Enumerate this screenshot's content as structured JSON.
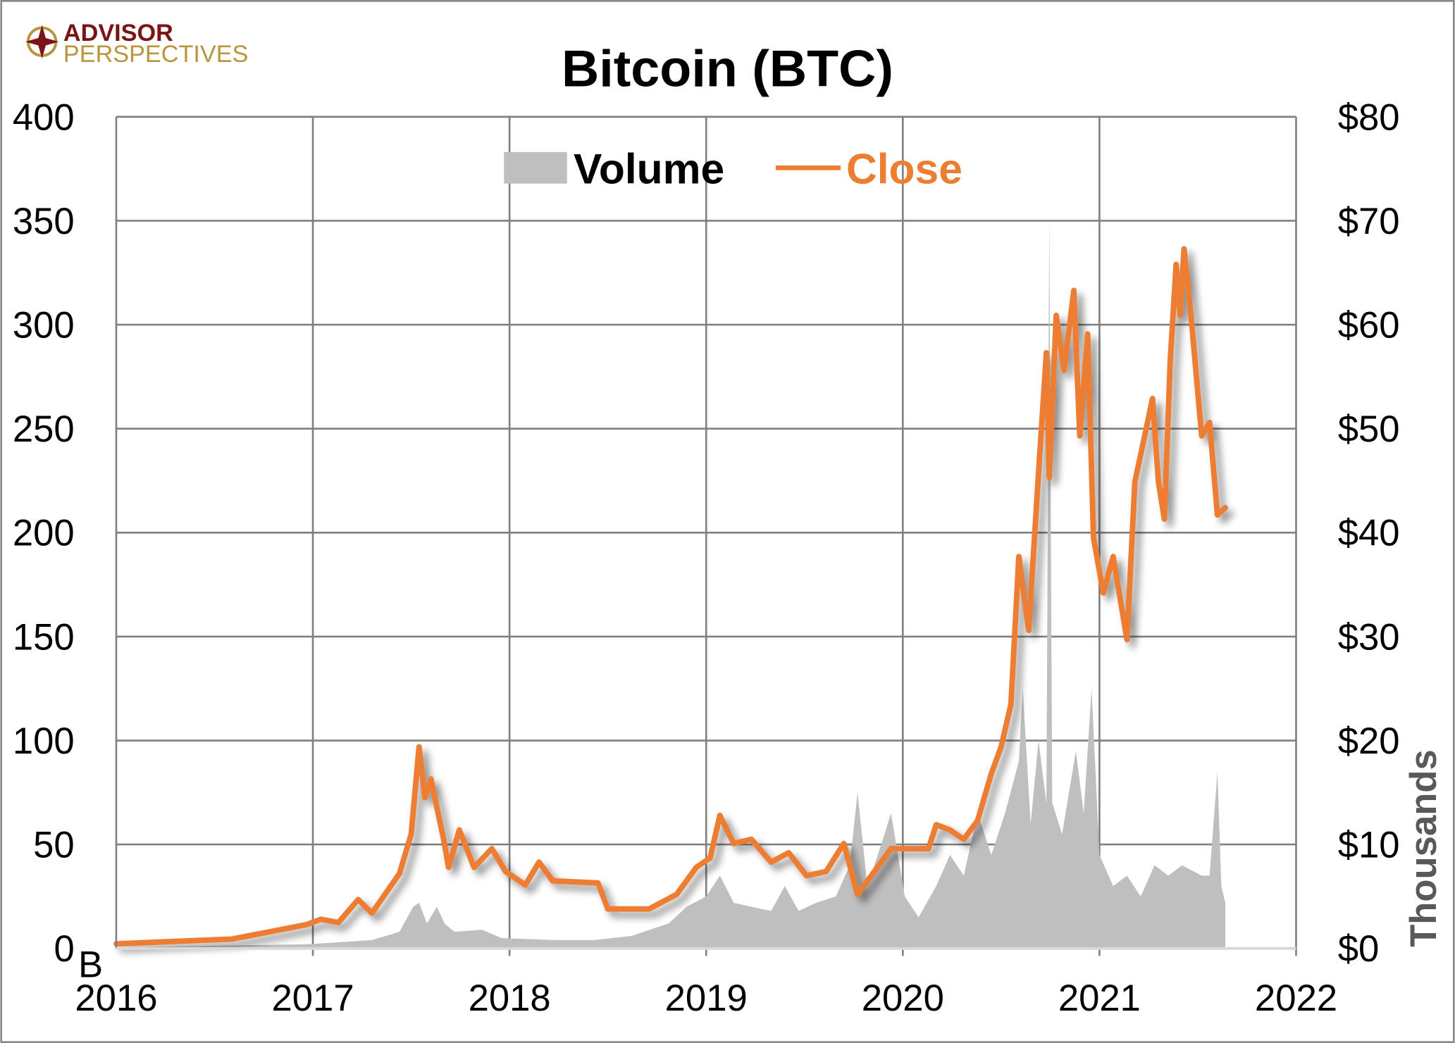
{
  "logo": {
    "line1": "ADVISOR",
    "line2": "PERSPECTIVES"
  },
  "chart_data": {
    "type": "line",
    "title": "Bitcoin (BTC)",
    "xlabel": "",
    "ylabel_left": "",
    "ylabel_right": "Thousands",
    "left_unit_suffix": "B",
    "x_ticks": [
      "2016",
      "2017",
      "2018",
      "2019",
      "2020",
      "2021",
      "2022"
    ],
    "xlim": [
      2016,
      2022
    ],
    "ylim_left": [
      0,
      400
    ],
    "ylim_right": [
      0,
      80
    ],
    "y_ticks_left": [
      "0",
      "50",
      "100",
      "150",
      "200",
      "250",
      "300",
      "350",
      "400"
    ],
    "y_ticks_right": [
      "$0",
      "$10",
      "$20",
      "$30",
      "$40",
      "$50",
      "$60",
      "$70",
      "$80"
    ],
    "grid": true,
    "legend": {
      "position": "top-center",
      "entries": [
        "Volume",
        "Close"
      ]
    },
    "colors": {
      "volume": "#bfbfbf",
      "close": "#ed7d31",
      "grid": "#808080"
    },
    "series": [
      {
        "name": "Volume",
        "axis": "left",
        "type": "area",
        "unit": "billions",
        "points": [
          [
            2016.0,
            0.5
          ],
          [
            2016.97,
            2
          ],
          [
            2017.3,
            4
          ],
          [
            2017.44,
            8
          ],
          [
            2017.51,
            20
          ],
          [
            2017.54,
            22
          ],
          [
            2017.58,
            12
          ],
          [
            2017.63,
            20
          ],
          [
            2017.67,
            12
          ],
          [
            2017.72,
            8
          ],
          [
            2017.86,
            9
          ],
          [
            2017.96,
            5
          ],
          [
            2018.24,
            4
          ],
          [
            2018.43,
            4
          ],
          [
            2018.62,
            6
          ],
          [
            2018.81,
            12
          ],
          [
            2018.9,
            20
          ],
          [
            2019.0,
            25
          ],
          [
            2019.07,
            35
          ],
          [
            2019.14,
            22
          ],
          [
            2019.23,
            20
          ],
          [
            2019.33,
            18
          ],
          [
            2019.4,
            30
          ],
          [
            2019.47,
            18
          ],
          [
            2019.56,
            22
          ],
          [
            2019.66,
            25
          ],
          [
            2019.73,
            40
          ],
          [
            2019.77,
            75
          ],
          [
            2019.82,
            30
          ],
          [
            2019.89,
            50
          ],
          [
            2019.94,
            65
          ],
          [
            2020.01,
            25
          ],
          [
            2020.08,
            15
          ],
          [
            2020.17,
            30
          ],
          [
            2020.24,
            45
          ],
          [
            2020.31,
            35
          ],
          [
            2020.38,
            65
          ],
          [
            2020.45,
            45
          ],
          [
            2020.52,
            65
          ],
          [
            2020.59,
            90
          ],
          [
            2020.61,
            125
          ],
          [
            2020.65,
            60
          ],
          [
            2020.69,
            100
          ],
          [
            2020.73,
            70
          ],
          [
            2020.745,
            352
          ],
          [
            2020.76,
            70
          ],
          [
            2020.81,
            55
          ],
          [
            2020.88,
            95
          ],
          [
            2020.92,
            65
          ],
          [
            2020.96,
            125
          ],
          [
            2021.0,
            45
          ],
          [
            2021.07,
            30
          ],
          [
            2021.14,
            35
          ],
          [
            2021.21,
            25
          ],
          [
            2021.28,
            40
          ],
          [
            2021.35,
            35
          ],
          [
            2021.42,
            40
          ],
          [
            2021.52,
            35
          ],
          [
            2021.56,
            35
          ],
          [
            2021.6,
            85
          ],
          [
            2021.62,
            30
          ],
          [
            2021.64,
            22
          ]
        ]
      },
      {
        "name": "Close",
        "axis": "right",
        "type": "line",
        "unit": "$ thousands",
        "points": [
          [
            2016.0,
            0.45
          ],
          [
            2016.59,
            0.9
          ],
          [
            2016.97,
            2.3
          ],
          [
            2017.04,
            2.8
          ],
          [
            2017.13,
            2.5
          ],
          [
            2017.23,
            4.7
          ],
          [
            2017.3,
            3.4
          ],
          [
            2017.44,
            7.2
          ],
          [
            2017.5,
            11
          ],
          [
            2017.54,
            19.4
          ],
          [
            2017.57,
            14.5
          ],
          [
            2017.6,
            16.3
          ],
          [
            2017.665,
            10.5
          ],
          [
            2017.69,
            7.8
          ],
          [
            2017.745,
            11.4
          ],
          [
            2017.82,
            7.8
          ],
          [
            2017.91,
            9.6
          ],
          [
            2017.98,
            7.4
          ],
          [
            2018.08,
            6.1
          ],
          [
            2018.15,
            8.3
          ],
          [
            2018.22,
            6.5
          ],
          [
            2018.45,
            6.3
          ],
          [
            2018.5,
            3.8
          ],
          [
            2018.71,
            3.8
          ],
          [
            2018.85,
            5.2
          ],
          [
            2018.95,
            7.8
          ],
          [
            2019.02,
            8.7
          ],
          [
            2019.07,
            12.8
          ],
          [
            2019.14,
            10.1
          ],
          [
            2019.23,
            10.5
          ],
          [
            2019.33,
            8.3
          ],
          [
            2019.42,
            9.2
          ],
          [
            2019.51,
            7
          ],
          [
            2019.61,
            7.4
          ],
          [
            2019.7,
            10.1
          ],
          [
            2019.77,
            5.2
          ],
          [
            2019.84,
            7
          ],
          [
            2019.94,
            9.6
          ],
          [
            2020.01,
            9.6
          ],
          [
            2020.13,
            9.6
          ],
          [
            2020.17,
            11.9
          ],
          [
            2020.24,
            11.4
          ],
          [
            2020.31,
            10.5
          ],
          [
            2020.38,
            12.3
          ],
          [
            2020.45,
            16.8
          ],
          [
            2020.5,
            19.4
          ],
          [
            2020.55,
            23.5
          ],
          [
            2020.59,
            37.7
          ],
          [
            2020.64,
            30.6
          ],
          [
            2020.69,
            45.7
          ],
          [
            2020.73,
            57.3
          ],
          [
            2020.745,
            45.3
          ],
          [
            2020.78,
            60.9
          ],
          [
            2020.82,
            55.6
          ],
          [
            2020.87,
            63.3
          ],
          [
            2020.9,
            49.3
          ],
          [
            2020.94,
            59.1
          ],
          [
            2020.97,
            39.5
          ],
          [
            2021.02,
            34.2
          ],
          [
            2021.07,
            37.7
          ],
          [
            2021.14,
            29.7
          ],
          [
            2021.18,
            44.9
          ],
          [
            2021.23,
            49.3
          ],
          [
            2021.27,
            52.9
          ],
          [
            2021.3,
            44.9
          ],
          [
            2021.33,
            41.3
          ],
          [
            2021.36,
            56.5
          ],
          [
            2021.39,
            65.8
          ],
          [
            2021.41,
            60.9
          ],
          [
            2021.43,
            67.3
          ],
          [
            2021.47,
            60
          ],
          [
            2021.52,
            49.3
          ],
          [
            2021.56,
            50.6
          ],
          [
            2021.6,
            41.7
          ],
          [
            2021.64,
            42.4
          ]
        ]
      }
    ]
  }
}
